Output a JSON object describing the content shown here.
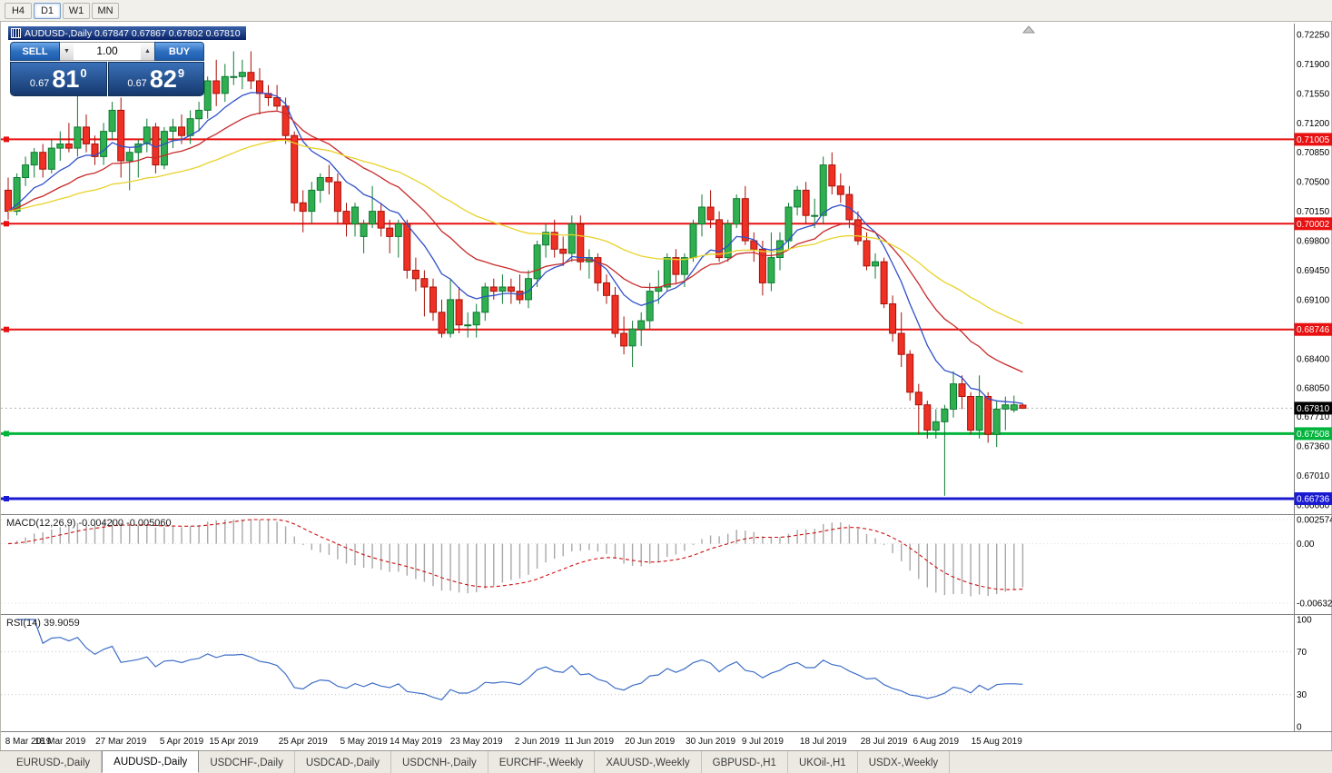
{
  "toolbar": {
    "periods": [
      {
        "label": "H4",
        "active": false
      },
      {
        "label": "D1",
        "active": true
      },
      {
        "label": "W1",
        "active": false
      },
      {
        "label": "MN",
        "active": false
      }
    ]
  },
  "chart": {
    "title": "AUDUSD-,Daily  0.67847 0.67867 0.67802 0.67810",
    "symbol": "AUDUSD-",
    "timeframe": "Daily",
    "ohlc_display": {
      "open": "0.67847",
      "high": "0.67867",
      "low": "0.67802",
      "close": "0.67810"
    }
  },
  "icons": {
    "volume_down": "▼",
    "volume_up": "▲"
  },
  "quote_panel": {
    "sell_label": "SELL",
    "buy_label": "BUY",
    "volume": "1.00",
    "sell_price": {
      "prefix": "0.67",
      "big": "81",
      "sup": "0",
      "full": "0.67810"
    },
    "buy_price": {
      "prefix": "0.67",
      "big": "82",
      "sup": "9",
      "full": "0.67829"
    }
  },
  "chart_data": {
    "type": "candlestick",
    "symbol": "AUDUSD-",
    "timeframe": "Daily",
    "price_range": {
      "top": 0.7225,
      "bottom": 0.6666
    },
    "price_axis_labels": [
      "0.72250",
      "0.71900",
      "0.71550",
      "0.71200",
      "0.70850",
      "0.70500",
      "0.70150",
      "0.69800",
      "0.69450",
      "0.69100",
      "0.68750",
      "0.68400",
      "0.68050",
      "0.67710",
      "0.67360",
      "0.67010",
      "0.66660"
    ],
    "x_axis_labels": [
      {
        "label": "8 Mar 2019",
        "index": 0
      },
      {
        "label": "18 Mar 2019",
        "index": 6
      },
      {
        "label": "27 Mar 2019",
        "index": 13
      },
      {
        "label": "5 Apr 2019",
        "index": 20
      },
      {
        "label": "15 Apr 2019",
        "index": 26
      },
      {
        "label": "25 Apr 2019",
        "index": 34
      },
      {
        "label": "5 May 2019",
        "index": 41
      },
      {
        "label": "14 May 2019",
        "index": 47
      },
      {
        "label": "23 May 2019",
        "index": 54
      },
      {
        "label": "2 Jun 2019",
        "index": 61
      },
      {
        "label": "11 Jun 2019",
        "index": 67
      },
      {
        "label": "20 Jun 2019",
        "index": 74
      },
      {
        "label": "30 Jun 2019",
        "index": 81
      },
      {
        "label": "9 Jul 2019",
        "index": 87
      },
      {
        "label": "18 Jul 2019",
        "index": 94
      },
      {
        "label": "28 Jul 2019",
        "index": 101
      },
      {
        "label": "6 Aug 2019",
        "index": 107
      },
      {
        "label": "15 Aug 2019",
        "index": 114
      }
    ],
    "hlines": [
      {
        "value": 0.71005,
        "label": "0.71005",
        "color": "#E81010",
        "width": 2,
        "handle": true
      },
      {
        "value": 0.70002,
        "label": "0.70002",
        "color": "#E81010",
        "width": 2,
        "handle": true
      },
      {
        "value": 0.68746,
        "label": "0.68746",
        "color": "#E81010",
        "width": 2,
        "handle": true
      },
      {
        "value": 0.67508,
        "label": "0.67508",
        "color": "#00B43C",
        "width": 3,
        "handle": true
      },
      {
        "value": 0.66736,
        "label": "0.66736",
        "color": "#1A1AD2",
        "width": 3,
        "handle": true
      }
    ],
    "current_price": {
      "value": 0.6781,
      "label": "0.67810",
      "tag_bg": "#000000"
    },
    "moving_averages": [
      {
        "period": 9,
        "color": "#3050C8"
      },
      {
        "period": 20,
        "color": "#C82A2A"
      },
      {
        "period": 45,
        "color": "#E8D22A"
      }
    ],
    "colors": {
      "bull": "#2FAF4F",
      "bull_border": "#0E7A32",
      "bear": "#EE3124",
      "bear_border": "#A81008",
      "background": "#FFFFFF"
    },
    "ohlc": [
      [
        0.704,
        0.7055,
        0.7005,
        0.7015
      ],
      [
        0.7015,
        0.706,
        0.701,
        0.7055
      ],
      [
        0.7055,
        0.708,
        0.7045,
        0.707
      ],
      [
        0.707,
        0.709,
        0.7055,
        0.7085
      ],
      [
        0.7085,
        0.7095,
        0.7055,
        0.7065
      ],
      [
        0.7065,
        0.71,
        0.706,
        0.709
      ],
      [
        0.709,
        0.711,
        0.7075,
        0.7095
      ],
      [
        0.7095,
        0.712,
        0.7085,
        0.709
      ],
      [
        0.709,
        0.7155,
        0.708,
        0.7115
      ],
      [
        0.7115,
        0.713,
        0.7085,
        0.7095
      ],
      [
        0.7095,
        0.7105,
        0.707,
        0.708
      ],
      [
        0.708,
        0.712,
        0.707,
        0.711
      ],
      [
        0.711,
        0.7145,
        0.71,
        0.7135
      ],
      [
        0.7135,
        0.715,
        0.7055,
        0.7075
      ],
      [
        0.7075,
        0.709,
        0.704,
        0.7085
      ],
      [
        0.7085,
        0.71,
        0.7055,
        0.7095
      ],
      [
        0.7095,
        0.7125,
        0.7085,
        0.7115
      ],
      [
        0.7115,
        0.712,
        0.706,
        0.707
      ],
      [
        0.707,
        0.7115,
        0.7065,
        0.711
      ],
      [
        0.711,
        0.7125,
        0.709,
        0.7115
      ],
      [
        0.7115,
        0.713,
        0.7095,
        0.7105
      ],
      [
        0.7105,
        0.7135,
        0.7095,
        0.7125
      ],
      [
        0.7125,
        0.7145,
        0.711,
        0.7135
      ],
      [
        0.7135,
        0.7175,
        0.7125,
        0.717
      ],
      [
        0.717,
        0.7195,
        0.714,
        0.7155
      ],
      [
        0.7155,
        0.719,
        0.7145,
        0.7175
      ],
      [
        0.7175,
        0.7205,
        0.7165,
        0.7175
      ],
      [
        0.7175,
        0.7195,
        0.716,
        0.718
      ],
      [
        0.718,
        0.7205,
        0.716,
        0.717
      ],
      [
        0.717,
        0.7185,
        0.713,
        0.7155
      ],
      [
        0.7155,
        0.7165,
        0.714,
        0.715
      ],
      [
        0.715,
        0.7165,
        0.7135,
        0.714
      ],
      [
        0.714,
        0.715,
        0.7095,
        0.7105
      ],
      [
        0.7105,
        0.711,
        0.7015,
        0.7025
      ],
      [
        0.7025,
        0.704,
        0.699,
        0.7015
      ],
      [
        0.7015,
        0.705,
        0.7,
        0.704
      ],
      [
        0.704,
        0.706,
        0.7025,
        0.7055
      ],
      [
        0.7055,
        0.707,
        0.7035,
        0.705
      ],
      [
        0.705,
        0.706,
        0.7,
        0.7015
      ],
      [
        0.7015,
        0.7025,
        0.6985,
        0.7
      ],
      [
        0.7,
        0.7025,
        0.6985,
        0.702
      ],
      [
        0.6985,
        0.7005,
        0.6965,
        0.7
      ],
      [
        0.7,
        0.7045,
        0.6995,
        0.7015
      ],
      [
        0.7015,
        0.7025,
        0.6985,
        0.6995
      ],
      [
        0.6995,
        0.7005,
        0.6965,
        0.6985
      ],
      [
        0.6985,
        0.7005,
        0.696,
        0.7
      ],
      [
        0.7,
        0.7005,
        0.6935,
        0.6945
      ],
      [
        0.6945,
        0.696,
        0.692,
        0.6935
      ],
      [
        0.6935,
        0.6945,
        0.689,
        0.6925
      ],
      [
        0.6925,
        0.6935,
        0.6885,
        0.6895
      ],
      [
        0.6895,
        0.691,
        0.6865,
        0.687
      ],
      [
        0.687,
        0.6935,
        0.6865,
        0.691
      ],
      [
        0.691,
        0.6925,
        0.687,
        0.688
      ],
      [
        0.688,
        0.6895,
        0.6865,
        0.688
      ],
      [
        0.688,
        0.6905,
        0.6865,
        0.6895
      ],
      [
        0.6895,
        0.693,
        0.6885,
        0.6925
      ],
      [
        0.6925,
        0.6935,
        0.691,
        0.692
      ],
      [
        0.692,
        0.694,
        0.6905,
        0.6925
      ],
      [
        0.6925,
        0.6935,
        0.6905,
        0.692
      ],
      [
        0.692,
        0.694,
        0.6905,
        0.691
      ],
      [
        0.691,
        0.6945,
        0.69,
        0.6935
      ],
      [
        0.6935,
        0.698,
        0.6925,
        0.6975
      ],
      [
        0.6975,
        0.7,
        0.696,
        0.699
      ],
      [
        0.699,
        0.7005,
        0.696,
        0.697
      ],
      [
        0.697,
        0.6985,
        0.695,
        0.6965
      ],
      [
        0.6965,
        0.701,
        0.6955,
        0.7
      ],
      [
        0.7,
        0.701,
        0.6945,
        0.6955
      ],
      [
        0.6955,
        0.697,
        0.6935,
        0.696
      ],
      [
        0.696,
        0.6965,
        0.692,
        0.693
      ],
      [
        0.693,
        0.694,
        0.6905,
        0.6915
      ],
      [
        0.6915,
        0.6925,
        0.6865,
        0.687
      ],
      [
        0.687,
        0.689,
        0.6845,
        0.6855
      ],
      [
        0.6855,
        0.6885,
        0.683,
        0.6875
      ],
      [
        0.6875,
        0.6895,
        0.6855,
        0.6885
      ],
      [
        0.6885,
        0.693,
        0.6875,
        0.692
      ],
      [
        0.692,
        0.6945,
        0.6905,
        0.6925
      ],
      [
        0.6925,
        0.6965,
        0.692,
        0.696
      ],
      [
        0.696,
        0.697,
        0.693,
        0.694
      ],
      [
        0.694,
        0.6965,
        0.6925,
        0.696
      ],
      [
        0.696,
        0.7005,
        0.6955,
        0.7
      ],
      [
        0.7,
        0.7035,
        0.6985,
        0.702
      ],
      [
        0.702,
        0.704,
        0.6995,
        0.7005
      ],
      [
        0.7005,
        0.7015,
        0.6955,
        0.696
      ],
      [
        0.696,
        0.7005,
        0.6955,
        0.7
      ],
      [
        0.7,
        0.7035,
        0.6995,
        0.703
      ],
      [
        0.703,
        0.7045,
        0.6975,
        0.698
      ],
      [
        0.698,
        0.699,
        0.6955,
        0.697
      ],
      [
        0.697,
        0.698,
        0.6915,
        0.693
      ],
      [
        0.693,
        0.699,
        0.692,
        0.696
      ],
      [
        0.696,
        0.699,
        0.6945,
        0.698
      ],
      [
        0.698,
        0.7025,
        0.697,
        0.702
      ],
      [
        0.702,
        0.7045,
        0.701,
        0.704
      ],
      [
        0.704,
        0.705,
        0.7,
        0.701
      ],
      [
        0.701,
        0.703,
        0.6995,
        0.701
      ],
      [
        0.701,
        0.708,
        0.7,
        0.707
      ],
      [
        0.707,
        0.7085,
        0.7035,
        0.7045
      ],
      [
        0.7045,
        0.706,
        0.7025,
        0.7035
      ],
      [
        0.7035,
        0.7045,
        0.6995,
        0.7005
      ],
      [
        0.7005,
        0.7015,
        0.6975,
        0.698
      ],
      [
        0.698,
        0.699,
        0.6945,
        0.695
      ],
      [
        0.695,
        0.6965,
        0.6935,
        0.6955
      ],
      [
        0.6955,
        0.696,
        0.69,
        0.6905
      ],
      [
        0.6905,
        0.6915,
        0.686,
        0.687
      ],
      [
        0.687,
        0.6895,
        0.683,
        0.6845
      ],
      [
        0.6845,
        0.685,
        0.679,
        0.68
      ],
      [
        0.68,
        0.681,
        0.675,
        0.6785
      ],
      [
        0.6785,
        0.679,
        0.6745,
        0.6755
      ],
      [
        0.6755,
        0.678,
        0.6745,
        0.6765
      ],
      [
        0.6765,
        0.6785,
        0.6677,
        0.678
      ],
      [
        0.678,
        0.6825,
        0.677,
        0.681
      ],
      [
        0.681,
        0.682,
        0.678,
        0.6795
      ],
      [
        0.6795,
        0.68,
        0.675,
        0.6755
      ],
      [
        0.6755,
        0.682,
        0.6745,
        0.6795
      ],
      [
        0.6795,
        0.68,
        0.674,
        0.675
      ],
      [
        0.675,
        0.679,
        0.6735,
        0.678
      ],
      [
        0.678,
        0.6795,
        0.6755,
        0.6785
      ],
      [
        0.6779,
        0.6796,
        0.6776,
        0.6785
      ],
      [
        0.67847,
        0.67867,
        0.67802,
        0.6781
      ]
    ]
  },
  "indicators": {
    "macd": {
      "label_text": "MACD(12,26,9) -0.004200 -0.005060",
      "params": [
        12,
        26,
        9
      ],
      "main_value": -0.0042,
      "signal_value": -0.00506,
      "axis_labels": [
        {
          "text": "0.002574",
          "value": 0.002574
        },
        {
          "text": "0.00",
          "value": 0
        },
        {
          "text": "-0.006326",
          "value": -0.006326
        }
      ],
      "axis_max": 0.002574,
      "axis_min": -0.006326,
      "histogram_color": "#A8A8A8",
      "signal_color": "#CC1010"
    },
    "rsi": {
      "label_text": "RSI(14) 39.9059",
      "period": 14,
      "value": 39.9059,
      "axis_labels": [
        {
          "text": "100",
          "value": 100
        },
        {
          "text": "70",
          "value": 70
        },
        {
          "text": "30",
          "value": 30
        },
        {
          "text": "0",
          "value": 0
        }
      ],
      "levels": [
        70,
        30
      ],
      "line_color": "#3E6EC8"
    }
  },
  "tabs": {
    "items": [
      {
        "label": "EURUSD-,Daily",
        "active": false
      },
      {
        "label": "AUDUSD-,Daily",
        "active": true
      },
      {
        "label": "USDCHF-,Daily",
        "active": false
      },
      {
        "label": "USDCAD-,Daily",
        "active": false
      },
      {
        "label": "USDCNH-,Daily",
        "active": false
      },
      {
        "label": "EURCHF-,Weekly",
        "active": false
      },
      {
        "label": "XAUUSD-,Weekly",
        "active": false
      },
      {
        "label": "GBPUSD-,H1",
        "active": false
      },
      {
        "label": "UKOil-,H1",
        "active": false
      },
      {
        "label": "USDX-,Weekly",
        "active": false
      }
    ]
  }
}
